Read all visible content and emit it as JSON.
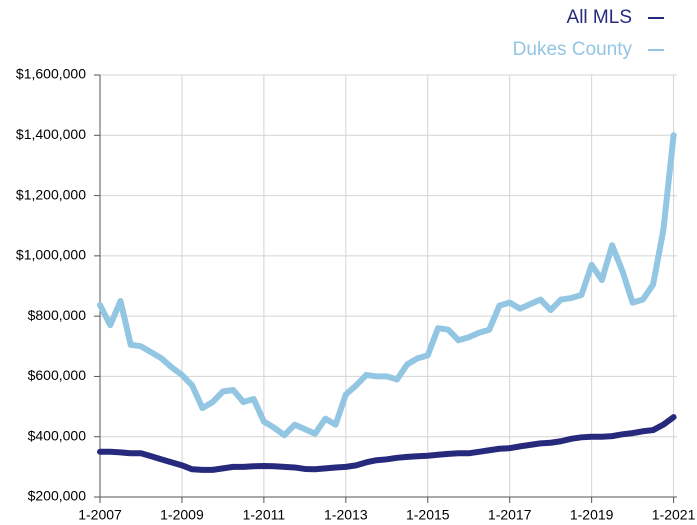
{
  "chart_data": {
    "type": "line",
    "x": [
      "1-2007",
      "4-2007",
      "7-2007",
      "10-2007",
      "1-2008",
      "4-2008",
      "7-2008",
      "10-2008",
      "1-2009",
      "4-2009",
      "7-2009",
      "10-2009",
      "1-2010",
      "4-2010",
      "7-2010",
      "10-2010",
      "1-2011",
      "4-2011",
      "7-2011",
      "10-2011",
      "1-2012",
      "4-2012",
      "7-2012",
      "10-2012",
      "1-2013",
      "4-2013",
      "7-2013",
      "10-2013",
      "1-2014",
      "4-2014",
      "7-2014",
      "10-2014",
      "1-2015",
      "4-2015",
      "7-2015",
      "10-2015",
      "1-2016",
      "4-2016",
      "7-2016",
      "10-2016",
      "1-2017",
      "4-2017",
      "7-2017",
      "10-2017",
      "1-2018",
      "4-2018",
      "7-2018",
      "10-2018",
      "1-2019",
      "4-2019",
      "7-2019",
      "10-2019",
      "1-2020",
      "4-2020",
      "7-2020",
      "10-2020",
      "1-2021"
    ],
    "series": [
      {
        "name": "All MLS",
        "color": "#272a7c",
        "values": [
          350000,
          350000,
          348000,
          345000,
          345000,
          335000,
          325000,
          315000,
          305000,
          292000,
          290000,
          290000,
          295000,
          300000,
          300000,
          302000,
          303000,
          302000,
          300000,
          298000,
          293000,
          292000,
          295000,
          298000,
          300000,
          305000,
          315000,
          322000,
          325000,
          330000,
          333000,
          335000,
          337000,
          340000,
          343000,
          345000,
          345000,
          350000,
          355000,
          360000,
          362000,
          368000,
          373000,
          378000,
          380000,
          385000,
          393000,
          398000,
          400000,
          400000,
          402000,
          408000,
          412000,
          418000,
          422000,
          440000,
          465000
        ]
      },
      {
        "name": "Dukes County",
        "color": "#92c6e2",
        "values": [
          837000,
          770000,
          850000,
          705000,
          700000,
          680000,
          660000,
          630000,
          605000,
          570000,
          495000,
          515000,
          550000,
          555000,
          515000,
          525000,
          450000,
          430000,
          405000,
          440000,
          425000,
          410000,
          460000,
          440000,
          540000,
          570000,
          605000,
          600000,
          600000,
          590000,
          640000,
          660000,
          670000,
          760000,
          755000,
          720000,
          730000,
          745000,
          755000,
          835000,
          845000,
          825000,
          840000,
          855000,
          820000,
          855000,
          860000,
          870000,
          970000,
          920000,
          1035000,
          950000,
          845000,
          855000,
          905000,
          1085000,
          1400000
        ]
      }
    ],
    "xlim": [
      "1-2007",
      "2-2021"
    ],
    "xticks": [
      "1-2007",
      "1-2009",
      "1-2011",
      "1-2013",
      "1-2015",
      "1-2017",
      "1-2019",
      "1-2021"
    ],
    "ylim": [
      200000,
      1600000
    ],
    "yticks": [
      {
        "value": 200000,
        "label": "$200,000"
      },
      {
        "value": 400000,
        "label": "$400,000"
      },
      {
        "value": 600000,
        "label": "$600,000"
      },
      {
        "value": 800000,
        "label": "$800,000"
      },
      {
        "value": 1000000,
        "label": "$1,000,000"
      },
      {
        "value": 1200000,
        "label": "$1,200,000"
      },
      {
        "value": 1400000,
        "label": "$1,400,000"
      },
      {
        "value": 1600000,
        "label": "$1,600,000"
      }
    ],
    "grid": true,
    "legend": "top-right"
  }
}
